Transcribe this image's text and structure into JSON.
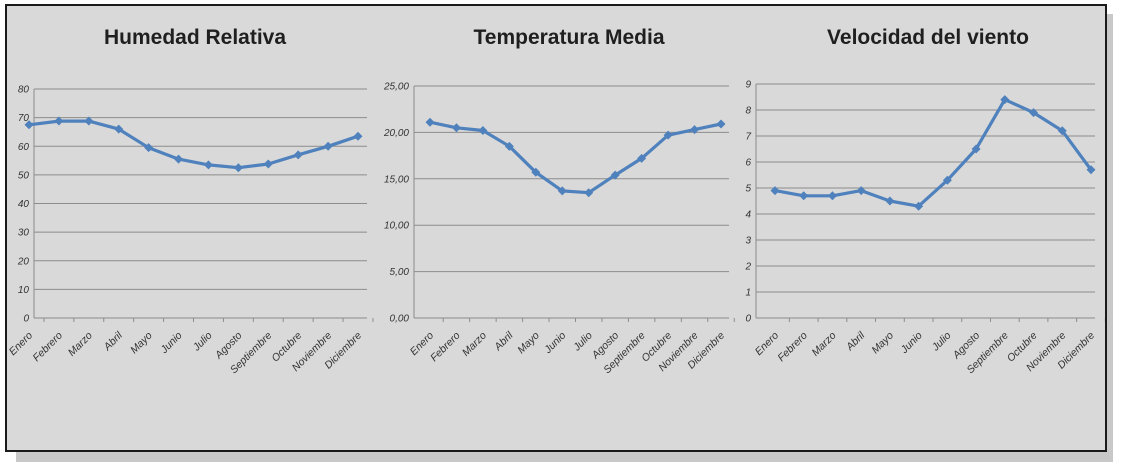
{
  "chart_data": [
    {
      "type": "line",
      "title": "Humedad Relativa",
      "categories": [
        "Enero",
        "Febrero",
        "Marzo",
        "Abril",
        "Mayo",
        "Junio",
        "Julio",
        "Agosto",
        "Septiembre",
        "Octubre",
        "Noviembre",
        "Diciembre"
      ],
      "yticks": [
        "0",
        "10",
        "20",
        "30",
        "40",
        "50",
        "60",
        "70",
        "80"
      ],
      "ylim": [
        0,
        80
      ],
      "series": [
        {
          "values": [
            67.5,
            68.8,
            68.8,
            66,
            59.5,
            55.5,
            53.5,
            52.5,
            53.8,
            57,
            60,
            63.5
          ]
        }
      ],
      "color": "#4f81bd",
      "grid": true
    },
    {
      "type": "line",
      "title": "Temperatura Media",
      "categories": [
        "Enero",
        "Febrero",
        "Marzo",
        "Abril",
        "Mayo",
        "Junio",
        "Julio",
        "Agosto",
        "Septiembre",
        "Octubre",
        "Noviembre",
        "Diciembre"
      ],
      "yticks": [
        "0,00",
        "5,00",
        "10,00",
        "15,00",
        "20,00",
        "25,00"
      ],
      "ylim": [
        0,
        25
      ],
      "series": [
        {
          "values": [
            21.1,
            20.5,
            20.2,
            18.5,
            15.7,
            13.7,
            13.5,
            15.4,
            17.2,
            19.7,
            20.3,
            20.9
          ]
        }
      ],
      "color": "#4f81bd",
      "grid": true
    },
    {
      "type": "line",
      "title": "Velocidad del viento",
      "categories": [
        "Enero",
        "Febrero",
        "Marzo",
        "Abril",
        "Mayo",
        "Junio",
        "Julio",
        "Agosto",
        "Septiembre",
        "Octubre",
        "Noviembre",
        "Diciembre"
      ],
      "yticks": [
        "0",
        "1",
        "2",
        "3",
        "4",
        "5",
        "6",
        "7",
        "8",
        "9"
      ],
      "ylim": [
        0,
        9
      ],
      "series": [
        {
          "values": [
            4.9,
            4.7,
            4.7,
            4.9,
            4.5,
            4.3,
            5.3,
            6.5,
            8.4,
            7.9,
            7.2,
            5.7
          ]
        }
      ],
      "color": "#4f81bd",
      "grid": true
    }
  ]
}
